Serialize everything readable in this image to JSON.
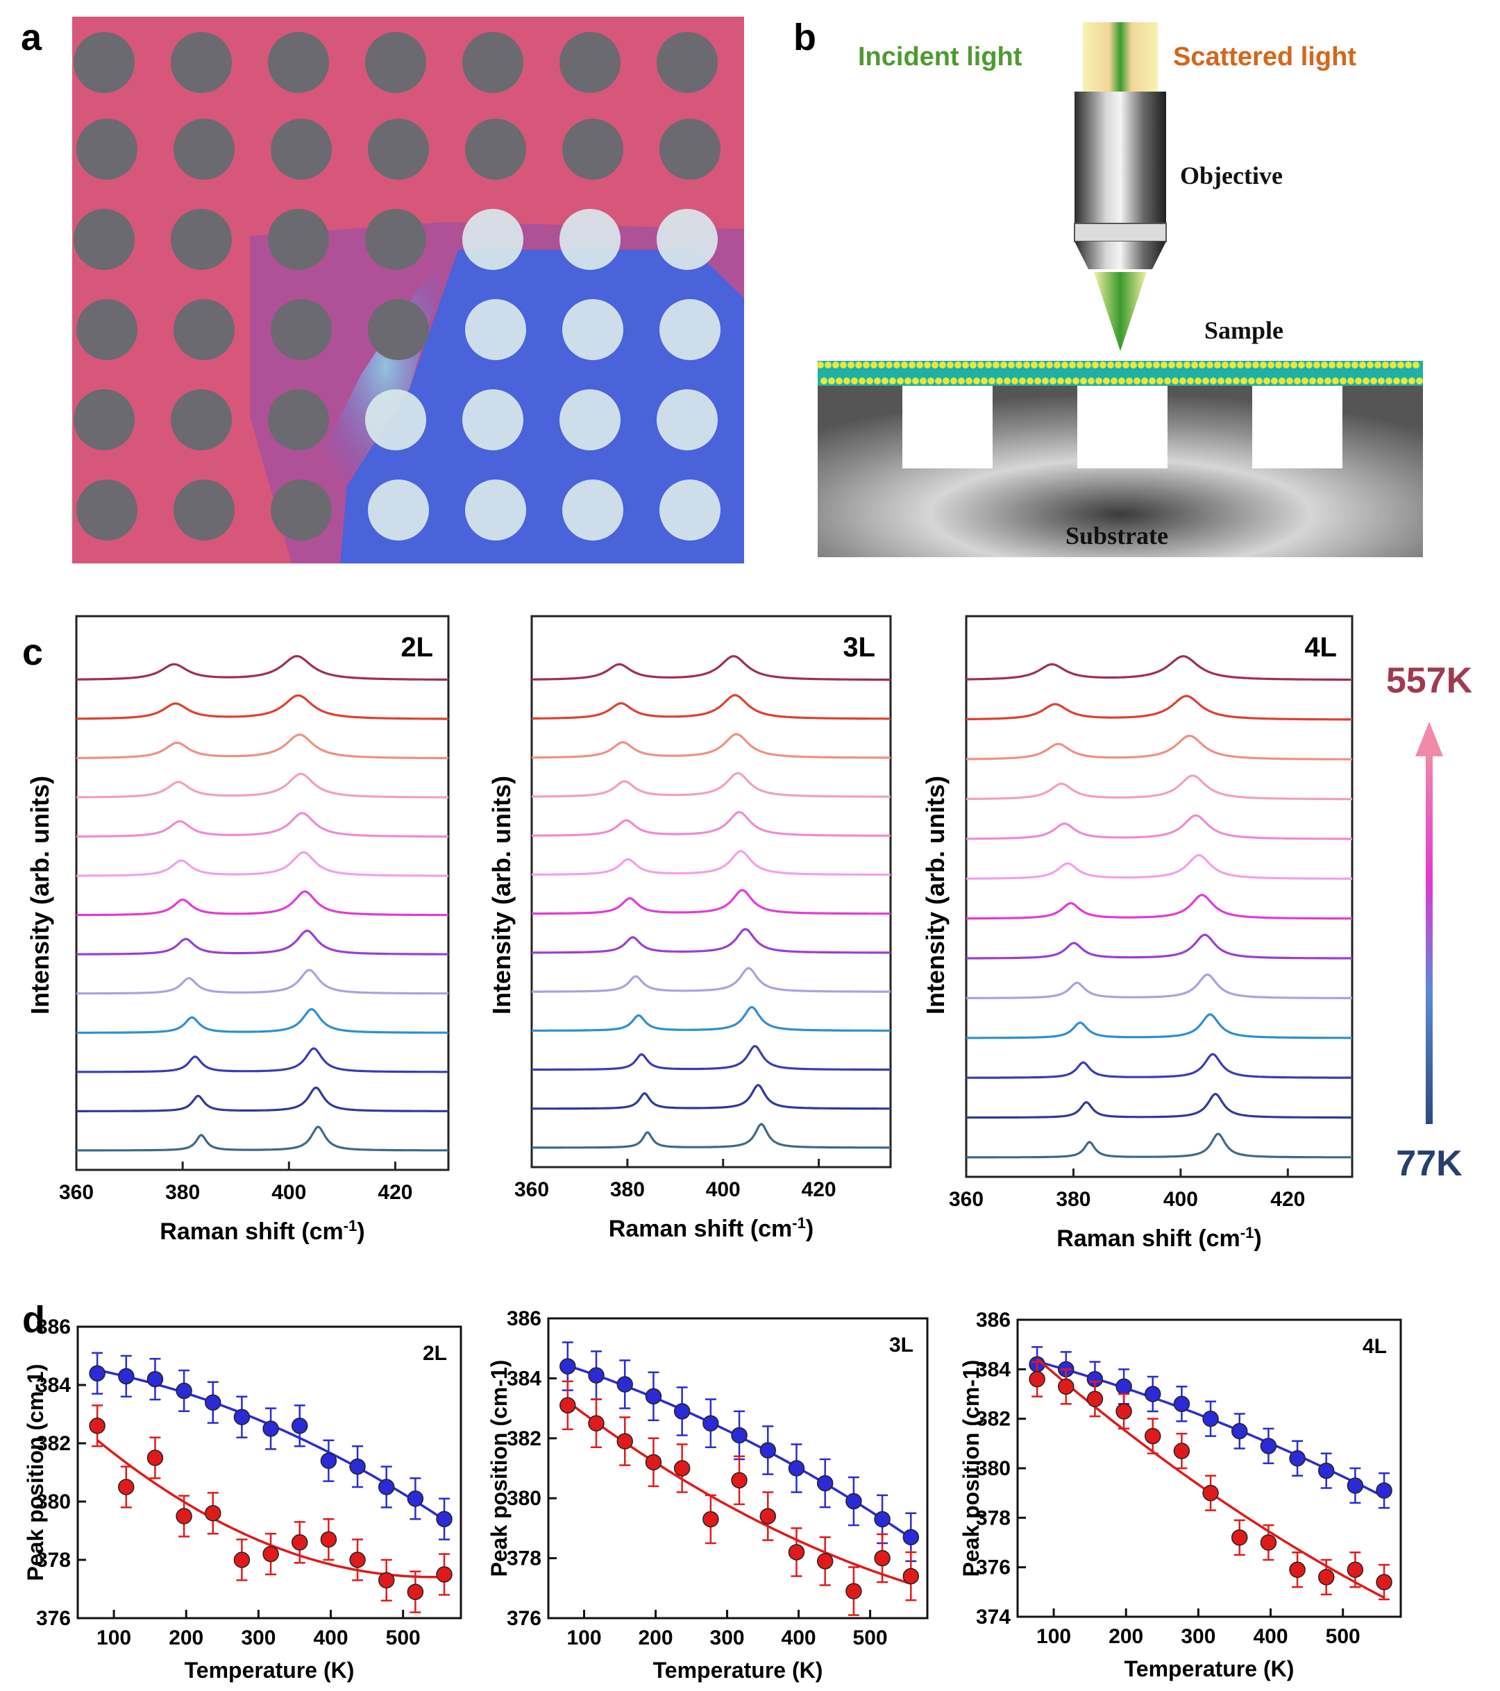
{
  "panel_labels": {
    "a": "a",
    "b": "b",
    "c": "c",
    "d": "d"
  },
  "panel_b": {
    "incident": "Incident light",
    "scattered": "Scattered light",
    "objective": "Objective",
    "sample": "Sample",
    "substrate": "Substrate",
    "colors": {
      "incident": "#4e9a2e",
      "scattered": "#d4661a"
    }
  },
  "panel_c": {
    "ylabel": "Intensity (arb. units)",
    "xlabel": "Raman shift (cm",
    "xlabel_sup": "-1",
    "xlabel_end": ")",
    "xticks": [
      "360",
      "380",
      "400",
      "420"
    ],
    "temp_high": "557K",
    "temp_low": "77K",
    "line_colors_low_to_high": [
      "#3c6a8a",
      "#2f3a9c",
      "#3a3cb8",
      "#2e8fd0",
      "#a9a2e4",
      "#9a3fd0",
      "#e33ad8",
      "#f2a0e8",
      "#f08ad0",
      "#f2a0b8",
      "#f09080",
      "#e04030",
      "#9e3050"
    ],
    "spectra": [
      {
        "label": "2L",
        "xmin": 360,
        "xmax": 430,
        "p1": [
          383.5,
          380.0,
          378.4
        ],
        "p2": [
          405.5,
          403.0,
          401.5
        ]
      },
      {
        "label": "3L",
        "xmin": 360,
        "xmax": 435,
        "p1": [
          384.2,
          380.5,
          378.3
        ],
        "p2": [
          408.0,
          404.0,
          402.2
        ]
      },
      {
        "label": "4L",
        "xmin": 360,
        "xmax": 432,
        "p1": [
          383.0,
          379.5,
          376.0
        ],
        "p2": [
          407.0,
          404.0,
          400.5
        ]
      }
    ]
  },
  "chart_data": [
    {
      "type": "scatter",
      "title": "2L",
      "xlabel": "Temperature (K)",
      "ylabel": "Peak position (cm-1)",
      "xlim": [
        50,
        580
      ],
      "ylim": [
        376,
        386
      ],
      "xticks": [
        100,
        200,
        300,
        400,
        500
      ],
      "yticks": [
        376,
        378,
        380,
        382,
        384,
        386
      ],
      "x": [
        77,
        117,
        157,
        197,
        237,
        277,
        317,
        357,
        397,
        437,
        477,
        517,
        557
      ],
      "series": [
        {
          "name": "blue",
          "color": "#2a2ad6",
          "values": [
            384.4,
            384.3,
            384.2,
            383.8,
            383.4,
            382.9,
            382.5,
            382.6,
            381.4,
            381.2,
            380.5,
            380.1,
            379.4
          ],
          "error": 0.7
        },
        {
          "name": "red",
          "color": "#e01a1a",
          "values": [
            382.6,
            380.5,
            381.5,
            379.5,
            379.6,
            378.0,
            378.2,
            378.6,
            378.7,
            378.0,
            377.3,
            376.9,
            377.5
          ],
          "error": 0.7
        }
      ]
    },
    {
      "type": "scatter",
      "title": "3L",
      "xlabel": "Temperature (K)",
      "ylabel": "Peak position (cm-1)",
      "xlim": [
        50,
        580
      ],
      "ylim": [
        376,
        386
      ],
      "xticks": [
        100,
        200,
        300,
        400,
        500
      ],
      "yticks": [
        376,
        378,
        380,
        382,
        384,
        386
      ],
      "x": [
        77,
        117,
        157,
        197,
        237,
        277,
        317,
        357,
        397,
        437,
        477,
        517,
        557
      ],
      "series": [
        {
          "name": "blue",
          "color": "#2a2ad6",
          "values": [
            384.4,
            384.1,
            383.8,
            383.4,
            382.9,
            382.5,
            382.1,
            381.6,
            381.0,
            380.5,
            379.9,
            379.3,
            378.7
          ],
          "error": 0.8
        },
        {
          "name": "red",
          "color": "#e01a1a",
          "values": [
            383.1,
            382.5,
            381.9,
            381.2,
            381.0,
            379.3,
            380.6,
            379.4,
            378.2,
            377.9,
            376.9,
            378.0,
            377.4
          ],
          "error": 0.8
        }
      ]
    },
    {
      "type": "scatter",
      "title": "4L",
      "xlabel": "Temperature (K)",
      "ylabel": "Peak position (cm-1)",
      "xlim": [
        50,
        580
      ],
      "ylim": [
        374,
        386
      ],
      "xticks": [
        100,
        200,
        300,
        400,
        500
      ],
      "yticks": [
        374,
        376,
        378,
        380,
        382,
        384,
        386
      ],
      "x": [
        77,
        117,
        157,
        197,
        237,
        277,
        317,
        357,
        397,
        437,
        477,
        517,
        557
      ],
      "series": [
        {
          "name": "blue",
          "color": "#2a2ad6",
          "values": [
            384.2,
            384.0,
            383.6,
            383.3,
            383.0,
            382.6,
            382.0,
            381.5,
            380.9,
            380.4,
            379.9,
            379.3,
            379.1
          ],
          "error": 0.7
        },
        {
          "name": "red",
          "color": "#e01a1a",
          "values": [
            383.6,
            383.3,
            382.8,
            382.3,
            381.3,
            380.7,
            379.0,
            377.2,
            377.0,
            375.9,
            375.6,
            375.9,
            375.4
          ],
          "error": 0.7
        }
      ]
    }
  ]
}
